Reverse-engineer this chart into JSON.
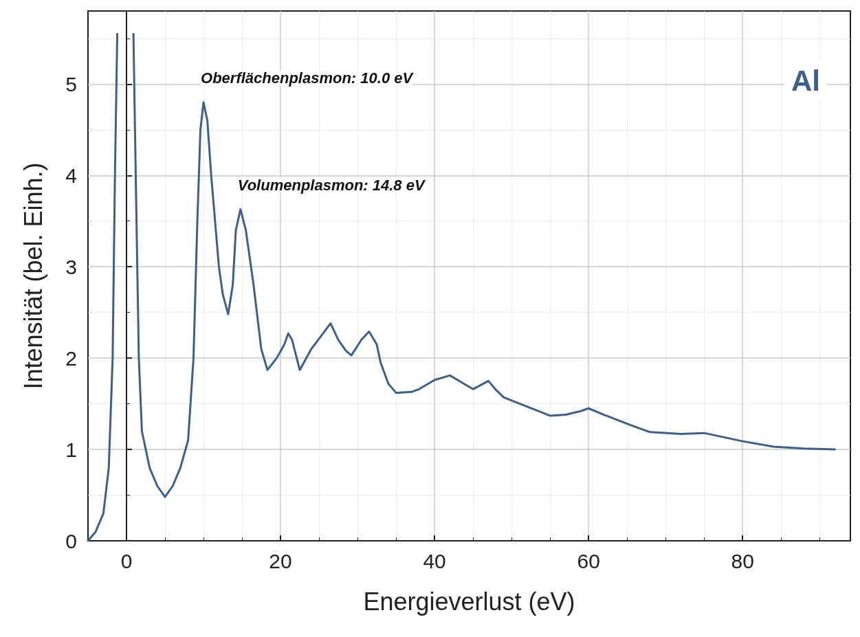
{
  "chart_data": {
    "type": "line",
    "xlabel": "Energieverlust (eV)",
    "ylabel": "Intensität (bel. Einh.)",
    "xlim": [
      -5,
      94
    ],
    "ylim": [
      0,
      5.8
    ],
    "xticks": [
      0,
      20,
      40,
      60,
      80
    ],
    "yticks": [
      0,
      1,
      2,
      3,
      4,
      5
    ],
    "grid": true,
    "marker": "none",
    "line_style": "solid",
    "annotations": [
      {
        "text": "Oberflächenplasmon: 10.0 eV",
        "x": 10,
        "y": 4.8
      },
      {
        "text": "Volumenplasmon: 14.8 eV",
        "x": 14.8,
        "y": 3.63
      },
      "Al"
    ],
    "series": [
      {
        "color": "#3e5f8a",
        "x": [
          -5,
          -4,
          -3,
          -2.3,
          -1.8,
          -1.5,
          -1.2,
          0,
          0.9,
          1.2,
          1.6,
          2,
          3,
          4,
          5,
          6,
          7,
          8,
          8.7,
          9.2,
          9.6,
          10,
          10.5,
          11,
          12,
          12.5,
          13.2,
          13.8,
          14.2,
          14.8,
          15.5,
          16.5,
          17.5,
          18.3,
          19.5,
          20.5,
          21,
          21.5,
          22.5,
          24,
          26.5,
          27.5,
          28.5,
          29.2,
          30.5,
          31.5,
          32.5,
          33,
          34,
          35,
          37,
          38,
          40,
          42,
          43,
          45,
          47,
          48,
          49,
          52,
          55,
          57,
          59,
          60,
          62,
          66,
          68,
          72,
          75,
          80,
          84,
          88,
          92
        ],
        "values": [
          0,
          0.1,
          0.3,
          0.8,
          2,
          4,
          5.55,
          null,
          5.55,
          4,
          2,
          1.2,
          0.8,
          0.6,
          0.48,
          0.6,
          0.8,
          1.1,
          2,
          3.5,
          4.5,
          4.8,
          4.6,
          4,
          3,
          2.7,
          2.48,
          2.8,
          3.4,
          3.63,
          3.4,
          2.8,
          2.1,
          1.87,
          2,
          2.15,
          2.27,
          2.2,
          1.87,
          2.1,
          2.38,
          2.2,
          2.08,
          2.03,
          2.2,
          2.29,
          2.15,
          1.95,
          1.72,
          1.62,
          1.63,
          1.66,
          1.76,
          1.81,
          1.76,
          1.66,
          1.75,
          1.65,
          1.57,
          1.47,
          1.37,
          1.38,
          1.42,
          1.45,
          1.38,
          1.25,
          1.19,
          1.17,
          1.18,
          1.09,
          1.03,
          1.01,
          1.0
        ]
      }
    ]
  }
}
